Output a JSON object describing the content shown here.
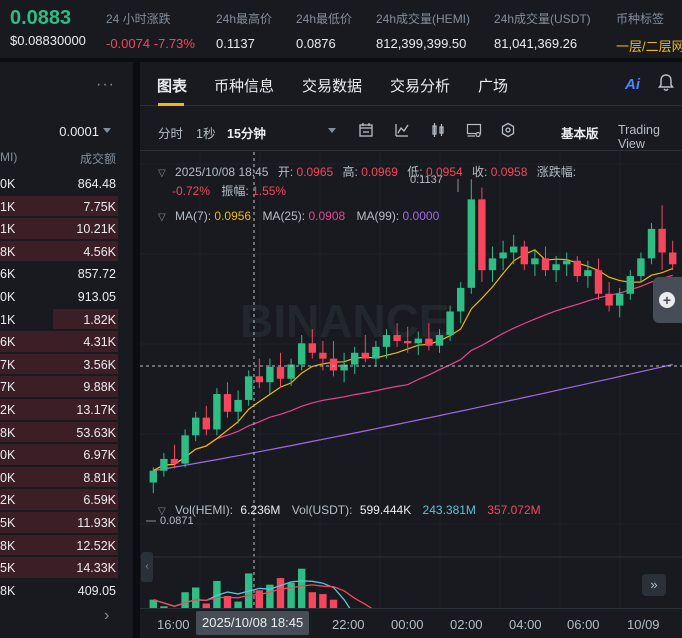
{
  "ticker": {
    "price": "0.0883",
    "usd_price": "$0.08830000",
    "change_label": "24 小时涨跌",
    "change_value": "-0.0074 -7.73%",
    "high_label": "24h最高价",
    "high_value": "0.1137",
    "low_label": "24h最低价",
    "low_value": "0.0876",
    "vol_hemi_label": "24h成交量(HEMI)",
    "vol_hemi_value": "812,399,399.50",
    "vol_usdt_label": "24h成交量(USDT)",
    "vol_usdt_value": "81,041,369.26",
    "tag_label": "币种标签",
    "tag_value": "一层/二层网"
  },
  "orderbook": {
    "menu": "···",
    "step": "0.0001",
    "header_left": "MI)",
    "header_right": "成交额",
    "rows": [
      {
        "l": "0K",
        "r": "864.48",
        "bar": 0.0
      },
      {
        "l": "1K",
        "r": "7.75K",
        "bar": 1.0
      },
      {
        "l": "1K",
        "r": "10.21K",
        "bar": 1.0
      },
      {
        "l": "8K",
        "r": "4.56K",
        "bar": 1.0
      },
      {
        "l": "6K",
        "r": "857.72",
        "bar": 0.0
      },
      {
        "l": "0K",
        "r": "913.05",
        "bar": 0.0
      },
      {
        "l": "1K",
        "r": "1.82K",
        "bar": 0.55
      },
      {
        "l": "6K",
        "r": "4.31K",
        "bar": 1.0
      },
      {
        "l": "7K",
        "r": "3.56K",
        "bar": 1.0
      },
      {
        "l": "7K",
        "r": "9.88K",
        "bar": 1.0
      },
      {
        "l": "2K",
        "r": "13.17K",
        "bar": 1.0
      },
      {
        "l": "8K",
        "r": "53.63K",
        "bar": 1.0
      },
      {
        "l": "0K",
        "r": "6.97K",
        "bar": 1.0
      },
      {
        "l": "0K",
        "r": "8.81K",
        "bar": 1.0
      },
      {
        "l": "2K",
        "r": "6.59K",
        "bar": 1.0
      },
      {
        "l": "5K",
        "r": "11.93K",
        "bar": 1.0
      },
      {
        "l": "8K",
        "r": "12.52K",
        "bar": 1.0
      },
      {
        "l": "5K",
        "r": "14.33K",
        "bar": 1.0
      },
      {
        "l": "8K",
        "r": "409.05",
        "bar": 0.0
      }
    ],
    "next": "›"
  },
  "tabs": [
    "图表",
    "币种信息",
    "交易数据",
    "交易分析",
    "广场"
  ],
  "toolbar": {
    "time": "分时",
    "s1": "1秒",
    "interval": "15分钟",
    "basic": "基本版",
    "tradingview": "Trading View"
  },
  "ai_label": "Ai",
  "ohlc": {
    "date": "2025/10/08 18:45",
    "open_label": "开:",
    "open": "0.0965",
    "high_label": "高:",
    "high": "0.0969",
    "low_label": "低:",
    "low": "0.0954",
    "close_label": "收:",
    "close": "0.0958",
    "change_label": "涨跌幅:",
    "change": "-0.72%",
    "amp_label": "振幅:",
    "amp": "1.55%"
  },
  "ma": {
    "ma7_label": "MA(7):",
    "ma7": "0.0956",
    "ma25_label": "MA(25):",
    "ma25": "0.0908",
    "ma99_label": "MA(99):",
    "ma99": "0.0000"
  },
  "annotations": {
    "high": "0.1137",
    "low": "0.0871",
    "watermark": "BINANCE"
  },
  "volume": {
    "vol_hemi_label": "Vol(HEMI):",
    "vol_hemi": "6.236M",
    "vol_usdt_label": "Vol(USDT):",
    "vol_usdt": "599.444K",
    "ma_a": "243.381M",
    "ma_b": "357.072M"
  },
  "xaxis": {
    "ticks": [
      "16:00",
      "22:00",
      "00:00",
      "02:00",
      "04:00",
      "06:00",
      "10/09"
    ],
    "crosshair": "2025/10/08 18:45"
  },
  "colors": {
    "up": "#2ebd85",
    "down": "#f6465d",
    "accent": "#f0b90b",
    "ma7": "#f0b90b",
    "ma25": "#e84393",
    "ma99": "#a26ae8"
  },
  "candles": [
    [
      0.088,
      0.0893,
      0.0871,
      0.089
    ],
    [
      0.089,
      0.0905,
      0.0885,
      0.09
    ],
    [
      0.09,
      0.0912,
      0.0892,
      0.0896
    ],
    [
      0.0896,
      0.0925,
      0.0893,
      0.092
    ],
    [
      0.092,
      0.094,
      0.0915,
      0.0935
    ],
    [
      0.0935,
      0.0945,
      0.092,
      0.0925
    ],
    [
      0.0925,
      0.096,
      0.092,
      0.0955
    ],
    [
      0.0955,
      0.0965,
      0.0935,
      0.094
    ],
    [
      0.094,
      0.0958,
      0.093,
      0.095
    ],
    [
      0.095,
      0.0975,
      0.0945,
      0.097
    ],
    [
      0.097,
      0.0985,
      0.096,
      0.0965
    ],
    [
      0.0965,
      0.0985,
      0.0955,
      0.0978
    ],
    [
      0.0978,
      0.099,
      0.096,
      0.0968
    ],
    [
      0.0968,
      0.0985,
      0.0962,
      0.098
    ],
    [
      0.098,
      0.1005,
      0.0975,
      0.0998
    ],
    [
      0.0998,
      0.101,
      0.0985,
      0.099
    ],
    [
      0.099,
      0.1,
      0.0975,
      0.0985
    ],
    [
      0.0985,
      0.1,
      0.097,
      0.0975
    ],
    [
      0.0975,
      0.099,
      0.0965,
      0.098
    ],
    [
      0.098,
      0.0995,
      0.0972,
      0.099
    ],
    [
      0.099,
      0.1005,
      0.0982,
      0.0985
    ],
    [
      0.0985,
      0.1,
      0.0978,
      0.0995
    ],
    [
      0.0995,
      0.101,
      0.0985,
      0.1005
    ],
    [
      0.1005,
      0.1015,
      0.0995,
      0.1
    ],
    [
      0.1,
      0.1012,
      0.099,
      0.0998
    ],
    [
      0.0998,
      0.1008,
      0.0988,
      0.1002
    ],
    [
      0.1002,
      0.1015,
      0.0992,
      0.0996
    ],
    [
      0.0996,
      0.101,
      0.099,
      0.1005
    ],
    [
      0.1005,
      0.103,
      0.1,
      0.1025
    ],
    [
      0.1025,
      0.105,
      0.1015,
      0.1045
    ],
    [
      0.1045,
      0.1137,
      0.104,
      0.112
    ],
    [
      0.112,
      0.113,
      0.105,
      0.106
    ],
    [
      0.106,
      0.108,
      0.105,
      0.107
    ],
    [
      0.107,
      0.1085,
      0.106,
      0.1075
    ],
    [
      0.1075,
      0.109,
      0.1065,
      0.108
    ],
    [
      0.108,
      0.1085,
      0.106,
      0.1065
    ],
    [
      0.1065,
      0.1078,
      0.1055,
      0.107
    ],
    [
      0.107,
      0.108,
      0.1055,
      0.106
    ],
    [
      0.106,
      0.1072,
      0.105,
      0.1065
    ],
    [
      0.1065,
      0.1075,
      0.1055,
      0.1068
    ],
    [
      0.1068,
      0.1072,
      0.105,
      0.1055
    ],
    [
      0.1055,
      0.1068,
      0.1045,
      0.106
    ],
    [
      0.106,
      0.107,
      0.1035,
      0.104
    ],
    [
      0.104,
      0.105,
      0.1025,
      0.103
    ],
    [
      0.103,
      0.1045,
      0.102,
      0.104
    ],
    [
      0.104,
      0.106,
      0.1035,
      0.1055
    ],
    [
      0.1055,
      0.1075,
      0.105,
      0.107
    ],
    [
      0.107,
      0.11,
      0.1065,
      0.1095
    ],
    [
      0.1095,
      0.1115,
      0.106,
      0.1075
    ],
    [
      0.1075,
      0.1085,
      0.106,
      0.1065
    ]
  ],
  "volumes": [
    0.62,
    0.55,
    0.48,
    0.7,
    0.75,
    0.58,
    0.82,
    0.66,
    0.6,
    0.9,
    0.72,
    0.78,
    0.85,
    0.8,
    0.95,
    0.7,
    0.68,
    0.62,
    0.15,
    0.1,
    0.08,
    0.06,
    0.06,
    0.05,
    0.05,
    0.04,
    0.04,
    0.04,
    0.05,
    0.05,
    0.06,
    0.05,
    0.04,
    0.04,
    0.04,
    0.04,
    0.03,
    0.03,
    0.03,
    0.03,
    0.03,
    0.03,
    0.03,
    0.03,
    0.03,
    0.03,
    0.04,
    0.04,
    0.04,
    0.04
  ]
}
